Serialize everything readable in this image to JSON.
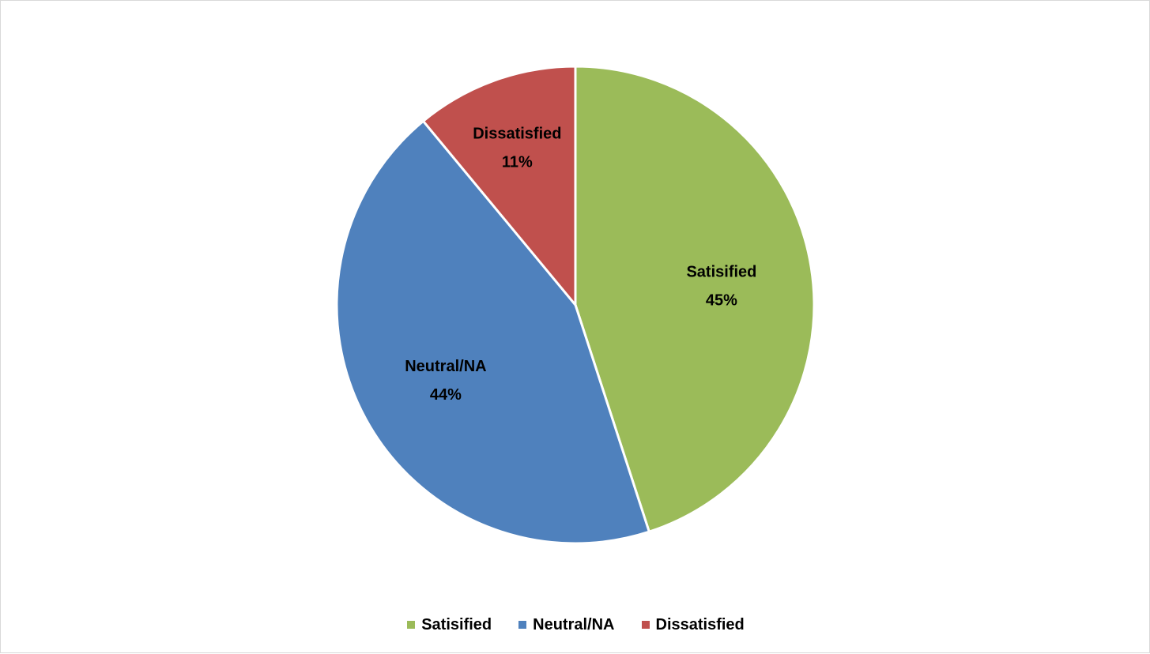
{
  "chart_data": {
    "type": "pie",
    "categories": [
      "Satisified",
      "Neutral/NA",
      "Dissatisfied"
    ],
    "values": [
      45,
      44,
      11
    ],
    "value_labels": [
      "45%",
      "44%",
      "11%"
    ],
    "colors": [
      "#9BBB59",
      "#4F81BD",
      "#C0504D"
    ],
    "title": "",
    "legend_position": "bottom",
    "start_angle": "12 o'clock",
    "direction": "clockwise"
  }
}
